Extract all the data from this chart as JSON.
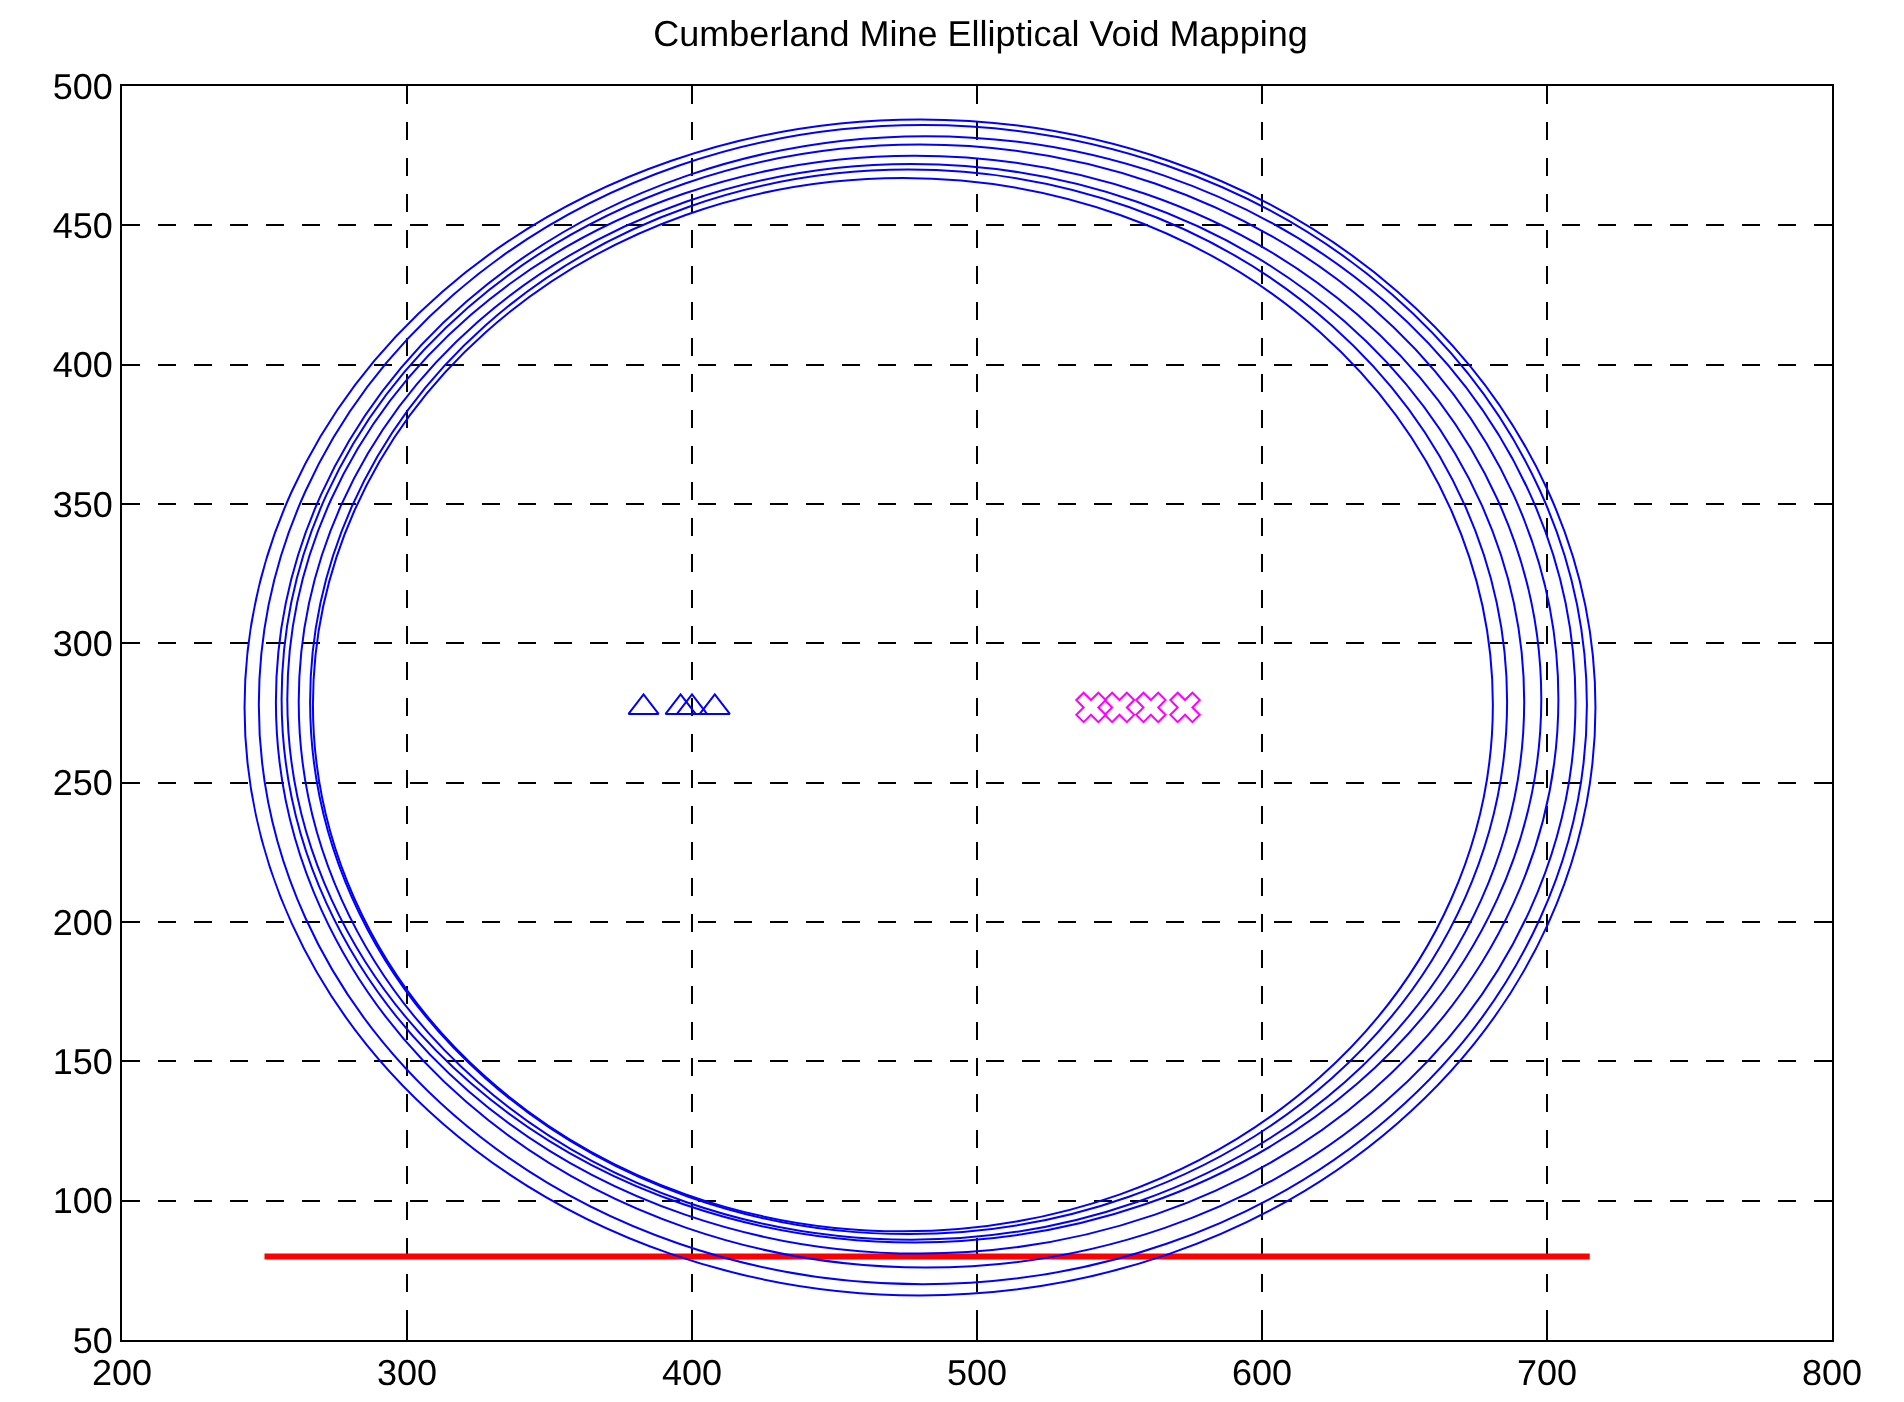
{
  "chart_data": {
    "type": "line",
    "title": "Cumberland Mine Elliptical Void Mapping",
    "xlim": [
      200,
      800
    ],
    "ylim": [
      50,
      500
    ],
    "xticks": [
      200,
      300,
      400,
      500,
      600,
      700,
      800
    ],
    "yticks": [
      50,
      100,
      150,
      200,
      250,
      300,
      350,
      400,
      450,
      500
    ],
    "grid": true,
    "legend": false,
    "line_style": "solid",
    "series": [
      {
        "type": "scatter",
        "color": "#0000ff",
        "marker": "triangle",
        "x": [
          383,
          396,
          400,
          408
        ],
        "values": [
          277,
          277,
          277,
          277
        ]
      },
      {
        "type": "scatter",
        "color": "#ff00ff",
        "marker": "cross",
        "x": [
          540,
          550,
          561,
          573
        ],
        "values": [
          277,
          277,
          277,
          277
        ]
      },
      {
        "color": "#ff0000",
        "marker": "none",
        "x": [
          250,
          715
        ],
        "values": [
          80,
          80
        ]
      }
    ]
  }
}
